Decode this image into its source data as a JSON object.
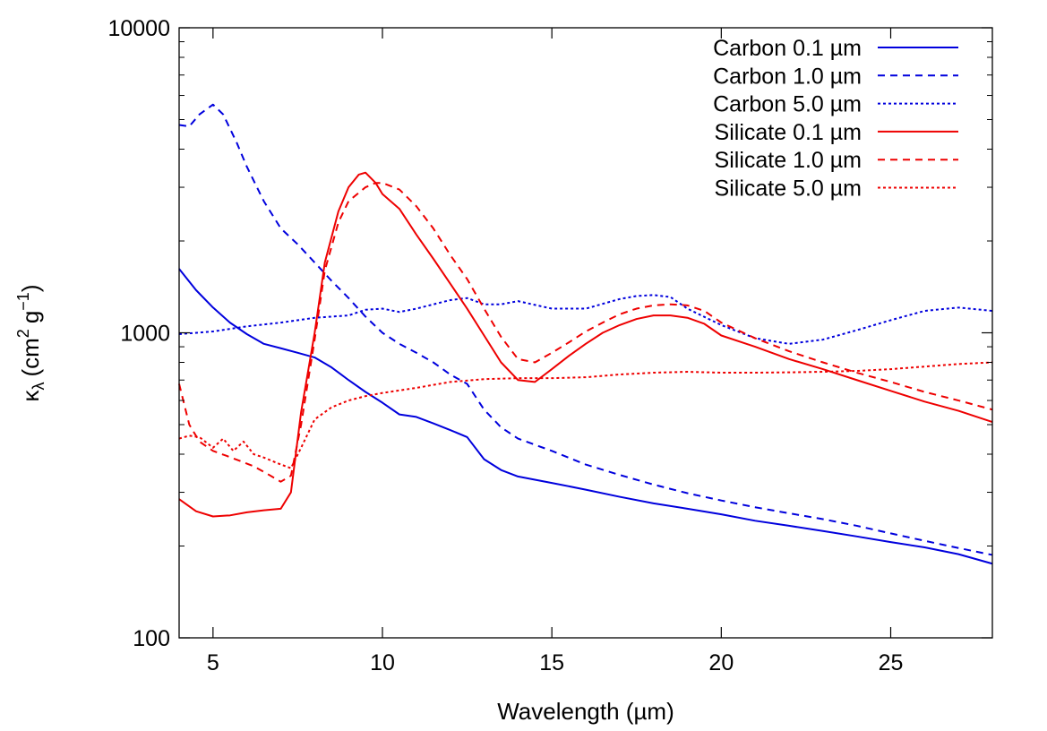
{
  "chart_data": {
    "type": "line",
    "title": "",
    "xlabel": "Wavelength (µm)",
    "ylabel": {
      "kappa": "κ",
      "lambda": "λ",
      "open": "(cm",
      "exp2": "2",
      "g": "g",
      "exp_neg1": "−1",
      "close": ")"
    },
    "yscale": "log",
    "xlim": [
      4,
      28
    ],
    "ylim": [
      100,
      10000
    ],
    "x_ticks": [
      5,
      10,
      15,
      20,
      25
    ],
    "x_tick_labels": [
      "5",
      "10",
      "15",
      "20",
      "25"
    ],
    "y_ticks": [
      100,
      1000,
      10000
    ],
    "y_tick_labels": [
      "100",
      "1000",
      "10000"
    ],
    "legend_position": "top-right",
    "series": [
      {
        "name": "Carbon 0.1 µm",
        "color": "#0000dd",
        "dash": "solid",
        "x": [
          4.0,
          4.5,
          5.0,
          5.5,
          6.0,
          6.5,
          7.0,
          7.5,
          8.0,
          8.5,
          9.0,
          9.5,
          10.0,
          10.5,
          11.0,
          11.5,
          12.0,
          12.5,
          13.0,
          13.5,
          14.0,
          15.0,
          16.0,
          17.0,
          18.0,
          19.0,
          20.0,
          21.0,
          22.0,
          23.0,
          24.0,
          25.0,
          26.0,
          27.0,
          28.0
        ],
        "y": [
          1620,
          1380,
          1210,
          1080,
          990,
          920,
          890,
          860,
          830,
          770,
          700,
          640,
          590,
          540,
          530,
          505,
          480,
          455,
          385,
          355,
          338,
          322,
          306,
          290,
          276,
          265,
          254,
          242,
          233,
          224,
          215,
          206,
          198,
          188,
          175
        ]
      },
      {
        "name": "Carbon 1.0 µm",
        "color": "#0000dd",
        "dash": "dashed",
        "x": [
          4.0,
          4.3,
          4.6,
          5.0,
          5.3,
          5.7,
          6.0,
          6.5,
          7.0,
          7.5,
          8.0,
          8.5,
          9.0,
          9.5,
          10.0,
          10.5,
          11.0,
          11.5,
          12.0,
          12.5,
          13.0,
          13.5,
          14.0,
          15.0,
          16.0,
          17.0,
          18.0,
          19.0,
          20.0,
          21.0,
          22.0,
          23.0,
          24.0,
          25.0,
          26.0,
          27.0,
          28.0
        ],
        "y": [
          4800,
          4750,
          5200,
          5600,
          5200,
          4200,
          3500,
          2700,
          2200,
          1950,
          1700,
          1480,
          1300,
          1130,
          1000,
          920,
          860,
          800,
          730,
          680,
          560,
          490,
          450,
          410,
          370,
          342,
          318,
          298,
          282,
          268,
          256,
          245,
          233,
          220,
          208,
          197,
          187
        ]
      },
      {
        "name": "Carbon 5.0 µm",
        "color": "#0000dd",
        "dash": "dotted",
        "x": [
          4.0,
          5.0,
          6.0,
          7.0,
          8.0,
          9.0,
          9.5,
          10.0,
          10.5,
          11.0,
          12.0,
          12.5,
          13.0,
          13.5,
          14.0,
          15.0,
          16.0,
          17.0,
          17.5,
          18.0,
          18.5,
          19.0,
          20.0,
          21.0,
          22.0,
          23.0,
          24.0,
          25.0,
          26.0,
          27.0,
          28.0
        ],
        "y": [
          990,
          1010,
          1050,
          1080,
          1120,
          1140,
          1190,
          1200,
          1170,
          1200,
          1280,
          1300,
          1240,
          1240,
          1270,
          1200,
          1200,
          1290,
          1320,
          1330,
          1310,
          1200,
          1060,
          960,
          920,
          950,
          1020,
          1100,
          1180,
          1210,
          1180
        ]
      },
      {
        "name": "Silicate 0.1 µm",
        "color": "#ee0000",
        "dash": "solid",
        "x": [
          4.0,
          4.5,
          5.0,
          5.5,
          6.0,
          6.5,
          7.0,
          7.3,
          7.6,
          8.0,
          8.3,
          8.7,
          9.0,
          9.3,
          9.5,
          9.8,
          10.0,
          10.5,
          11.0,
          11.5,
          12.0,
          12.5,
          13.0,
          13.5,
          14.0,
          14.5,
          15.0,
          15.5,
          16.0,
          16.5,
          17.0,
          17.5,
          18.0,
          18.5,
          19.0,
          19.5,
          20.0,
          21.0,
          22.0,
          23.0,
          24.0,
          25.0,
          26.0,
          27.0,
          28.0
        ],
        "y": [
          285,
          260,
          250,
          252,
          258,
          262,
          265,
          300,
          550,
          1000,
          1700,
          2500,
          3000,
          3300,
          3350,
          3100,
          2850,
          2550,
          2100,
          1750,
          1450,
          1200,
          980,
          800,
          700,
          690,
          760,
          840,
          920,
          1000,
          1060,
          1110,
          1140,
          1140,
          1120,
          1070,
          980,
          900,
          820,
          760,
          700,
          645,
          595,
          555,
          510
        ]
      },
      {
        "name": "Silicate 1.0 µm",
        "color": "#ee0000",
        "dash": "dashed",
        "x": [
          4.0,
          4.3,
          4.6,
          5.0,
          5.4,
          5.8,
          6.2,
          6.6,
          7.0,
          7.3,
          7.6,
          8.0,
          8.3,
          8.7,
          9.0,
          9.5,
          9.8,
          10.0,
          10.5,
          11.0,
          11.5,
          12.0,
          12.5,
          13.0,
          13.5,
          14.0,
          14.5,
          15.0,
          15.5,
          16.0,
          16.5,
          17.0,
          17.5,
          18.0,
          18.5,
          19.0,
          19.5,
          20.0,
          21.0,
          22.0,
          23.0,
          24.0,
          25.0,
          26.0,
          27.0,
          28.0
        ],
        "y": [
          680,
          500,
          440,
          410,
          395,
          380,
          365,
          345,
          325,
          340,
          500,
          950,
          1600,
          2300,
          2700,
          3000,
          3100,
          3100,
          2950,
          2600,
          2200,
          1800,
          1500,
          1200,
          970,
          820,
          800,
          860,
          930,
          1010,
          1080,
          1150,
          1200,
          1230,
          1240,
          1230,
          1180,
          1080,
          960,
          870,
          800,
          740,
          690,
          640,
          600,
          560
        ]
      },
      {
        "name": "Silicate 5.0 µm",
        "color": "#ee0000",
        "dash": "dotted",
        "x": [
          4.0,
          4.3,
          4.6,
          5.0,
          5.3,
          5.6,
          5.9,
          6.2,
          6.5,
          7.0,
          7.3,
          7.6,
          8.0,
          8.5,
          9.0,
          9.5,
          10.0,
          11.0,
          12.0,
          13.0,
          14.0,
          15.0,
          16.0,
          17.0,
          18.0,
          19.0,
          20.0,
          21.0,
          22.0,
          23.0,
          24.0,
          25.0,
          26.0,
          27.0,
          28.0
        ],
        "y": [
          450,
          460,
          455,
          420,
          450,
          410,
          440,
          400,
          390,
          370,
          360,
          420,
          520,
          570,
          600,
          620,
          635,
          660,
          690,
          705,
          710,
          710,
          715,
          730,
          740,
          745,
          740,
          740,
          742,
          745,
          750,
          760,
          775,
          790,
          800
        ]
      }
    ]
  }
}
